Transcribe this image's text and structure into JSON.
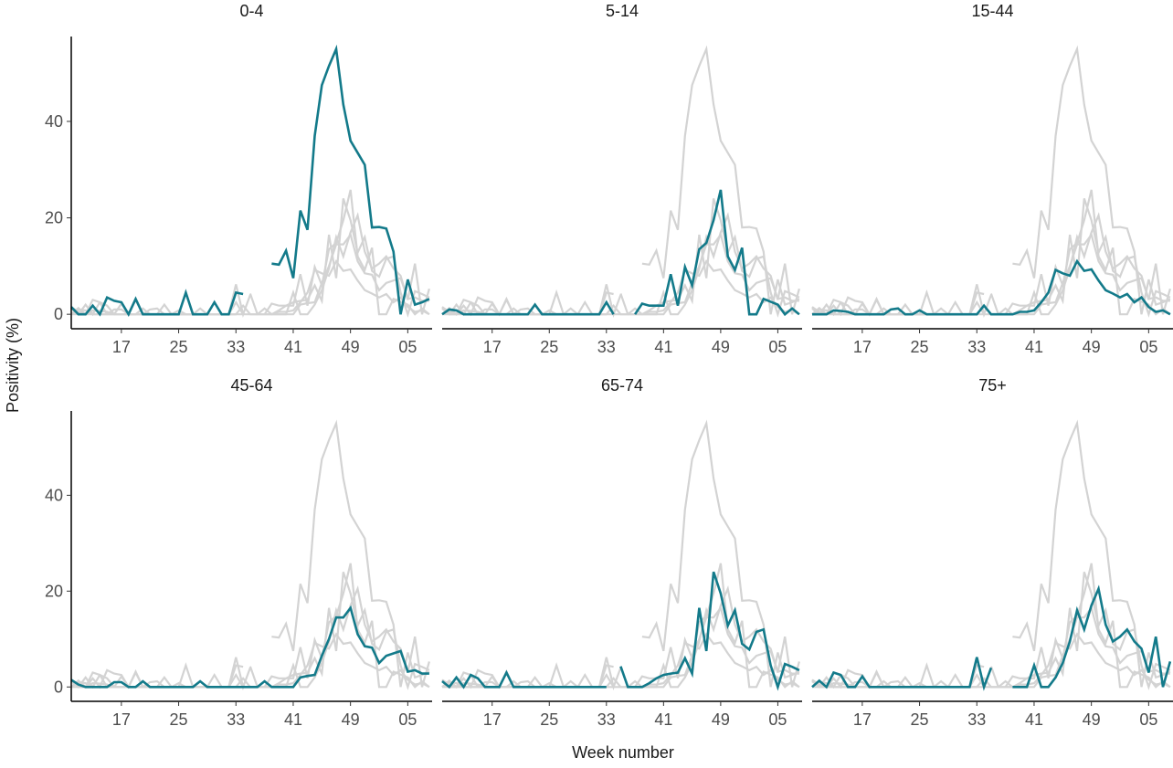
{
  "chart_data": {
    "type": "line",
    "x_label": "Week number",
    "y_label": "Positivity (%)",
    "x": [
      10,
      11,
      12,
      13,
      14,
      15,
      16,
      17,
      18,
      19,
      20,
      21,
      22,
      23,
      24,
      25,
      26,
      27,
      28,
      29,
      30,
      31,
      32,
      33,
      34,
      35,
      36,
      37,
      38,
      39,
      40,
      41,
      42,
      43,
      44,
      45,
      46,
      47,
      48,
      49,
      50,
      51,
      52,
      53,
      54,
      55,
      56,
      57,
      58,
      59,
      60
    ],
    "xlim": [
      10,
      60.4
    ],
    "xticks": [
      17,
      25,
      33,
      41,
      49,
      {
        "value": 57,
        "label": "05"
      }
    ],
    "ylim": [
      -3,
      57.6
    ],
    "yticks": [
      0,
      20,
      40
    ],
    "highlight_color": "#137a8a",
    "background_color": "#d3d3d3",
    "series": [
      {
        "name": "0-4",
        "values": [
          1.5,
          0,
          0,
          1.8,
          0,
          3.5,
          2.8,
          2.5,
          0,
          3.2,
          0,
          0,
          0,
          0,
          0,
          0,
          4.5,
          0,
          0,
          0,
          2.5,
          0,
          0,
          4.5,
          4.2,
          null,
          null,
          null,
          10.5,
          10.3,
          13.2,
          7.5,
          21.5,
          17.5,
          37,
          47.5,
          51.5,
          55,
          43.5,
          36,
          33.5,
          31,
          18,
          18.1,
          17.8,
          13,
          0,
          7.2,
          2,
          2.5,
          3.2
        ]
      },
      {
        "name": "5-14",
        "values": [
          0,
          1,
          0.8,
          0,
          0,
          0,
          0,
          0,
          0,
          0,
          0,
          0,
          0,
          2,
          0,
          0,
          0,
          0,
          0,
          0,
          0,
          0,
          0,
          2.5,
          0,
          null,
          null,
          0,
          2.2,
          1.8,
          1.8,
          1.8,
          8.3,
          1.8,
          9.8,
          6,
          13.5,
          14.8,
          19.5,
          25.8,
          12,
          9.2,
          13.8,
          0,
          0,
          3.2,
          2.6,
          2,
          0,
          1.2,
          0
        ]
      },
      {
        "name": "15-44",
        "values": [
          0,
          0,
          0,
          0.8,
          0.7,
          0.5,
          0,
          0,
          0,
          0,
          0,
          1,
          1.2,
          0,
          0,
          0.8,
          0,
          0,
          0,
          0,
          0,
          0,
          0,
          0,
          1.8,
          0,
          0,
          0,
          0,
          0.5,
          0.5,
          0.8,
          2.5,
          4.5,
          9.2,
          8.5,
          8,
          11,
          9,
          9.3,
          7,
          5,
          4.3,
          3.5,
          4.2,
          2.5,
          3.5,
          1.5,
          0.5,
          0.8,
          0
        ]
      },
      {
        "name": "45-64",
        "values": [
          1.5,
          0.5,
          0,
          0,
          0,
          0,
          1,
          1,
          0,
          0,
          1.2,
          0,
          0,
          0,
          0,
          0,
          0,
          0,
          1.2,
          0,
          0,
          0,
          0,
          0,
          0,
          0,
          0,
          1.2,
          0,
          0,
          0,
          0,
          2,
          2.3,
          2.5,
          6.5,
          10,
          14.5,
          14.5,
          16.5,
          11,
          8.5,
          8.2,
          5,
          6.5,
          7,
          7.5,
          3.2,
          3.5,
          2.8,
          2.8
        ]
      },
      {
        "name": "65-74",
        "values": [
          1.2,
          0,
          2,
          0,
          2.5,
          1.8,
          0,
          0,
          0,
          3,
          0,
          0,
          0,
          0,
          0,
          0,
          0,
          0,
          0,
          0,
          0,
          0,
          0,
          0,
          null,
          4.3,
          0,
          0,
          0,
          0.8,
          1.8,
          2.5,
          2.8,
          3,
          6,
          2.8,
          16.5,
          7.5,
          24,
          19.5,
          12.8,
          16,
          9,
          7.8,
          11.5,
          12,
          4.5,
          0,
          4.8,
          4.2,
          3.5
        ]
      },
      {
        "name": "75+",
        "values": [
          0,
          1.3,
          0,
          3,
          2.5,
          0,
          0,
          2.2,
          0,
          0,
          0,
          0,
          0,
          0,
          0,
          0,
          0,
          0,
          0,
          0,
          0,
          0,
          0,
          6.2,
          0,
          4,
          null,
          null,
          0,
          0,
          0,
          4.5,
          0,
          0,
          2,
          5,
          9.5,
          16,
          12,
          17,
          20.5,
          13,
          9.5,
          10.5,
          12,
          9.5,
          8,
          3,
          10.5,
          0,
          5.3
        ]
      }
    ]
  }
}
